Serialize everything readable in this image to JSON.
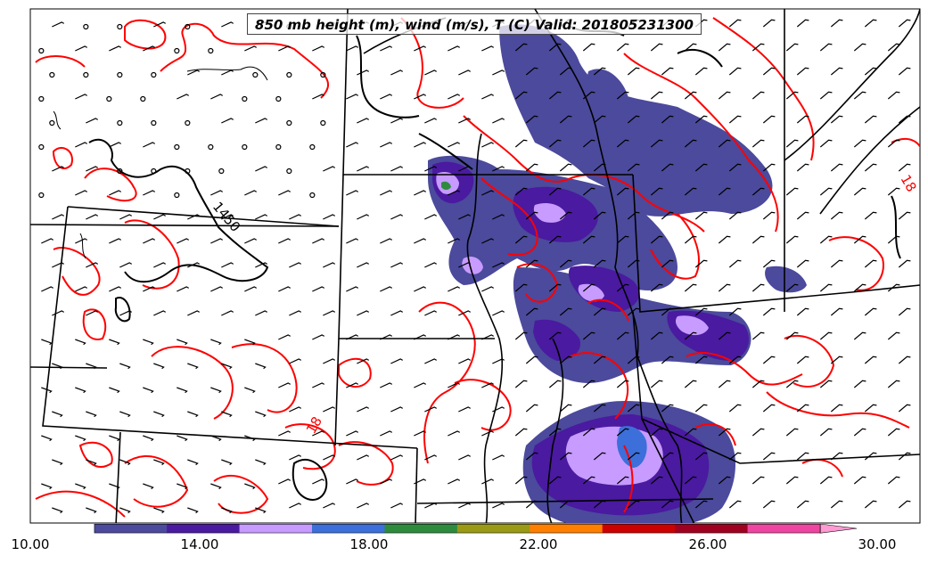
{
  "title": "850 mb height (m), wind (m/s), T (C) Valid: 201805231300",
  "contour_labels": {
    "height": [
      "1450"
    ],
    "temperature": [
      "18",
      "18",
      "18"
    ]
  },
  "colorbar": {
    "min": 10.0,
    "max": 30.0,
    "extend": "max",
    "colors": [
      "#4b4a9c",
      "#4a1aa0",
      "#c79bff",
      "#3c6fd9",
      "#2e8b3e",
      "#9a9a16",
      "#ff7f00",
      "#cc0000",
      "#a00020",
      "#ee45a0",
      "#ff9ad2"
    ],
    "tick_labels": [
      "10.00",
      "14.00",
      "18.00",
      "22.00",
      "26.00",
      "30.00"
    ]
  },
  "colors": {
    "temperature_contour": "#ff0000",
    "height_contour": "#000000",
    "boundaries": "#000000",
    "wind_barbs": "#000000"
  }
}
